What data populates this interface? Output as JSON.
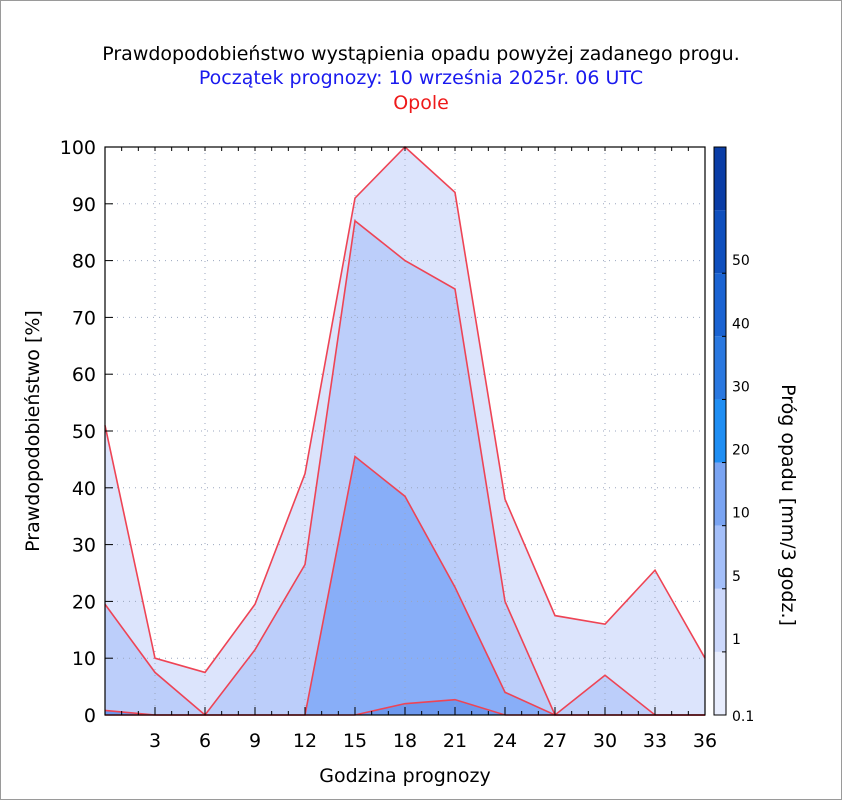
{
  "chart_data": {
    "type": "area",
    "title": "Prawdopodobieństwo wystąpienia opadu powyżej zadanego progu.",
    "subtitle": "Początek prognozy: 10 września 2025r. 06 UTC",
    "station": "Opole",
    "xlabel": "Godzina prognozy",
    "ylabel": "Prawdopodobieństwo [%]",
    "colorbar_label": "Próg opadu [mm/3 godz.]",
    "xlim": [
      0,
      36
    ],
    "ylim": [
      0,
      100
    ],
    "x_ticks": [
      3,
      6,
      9,
      12,
      15,
      18,
      21,
      24,
      27,
      30,
      33,
      36
    ],
    "y_ticks": [
      0,
      10,
      20,
      30,
      40,
      50,
      60,
      70,
      80,
      90,
      100
    ],
    "grid": true,
    "x": [
      0,
      3,
      6,
      9,
      12,
      15,
      18,
      21,
      24,
      27,
      30,
      33,
      36
    ],
    "series": [
      {
        "name": "0.1",
        "color": "#dce4fc",
        "values": [
          51,
          10,
          7.5,
          19.5,
          42.5,
          91,
          100,
          92,
          38,
          17.5,
          16,
          25.5,
          10
        ]
      },
      {
        "name": "1",
        "color": "#bccefa",
        "values": [
          19.5,
          7.5,
          0,
          11.5,
          26.5,
          87,
          80,
          75,
          20,
          0,
          7,
          0,
          0
        ]
      },
      {
        "name": "5",
        "color": "#88aef8",
        "values": [
          0,
          0,
          0,
          0,
          0,
          45.5,
          38.5,
          22.5,
          4,
          0,
          0,
          0,
          0
        ]
      },
      {
        "name": "10",
        "color": "#6c98ee",
        "values": [
          0.8,
          0,
          0,
          0,
          0,
          0,
          2,
          2.7,
          0,
          0,
          0,
          0,
          0
        ]
      }
    ],
    "line_color": "#ee4455",
    "colorbar": {
      "ticks": [
        "0.1",
        "1",
        "5",
        "10",
        "20",
        "30",
        "40",
        "50"
      ],
      "colors": [
        "#e8edfd",
        "#ccd8fb",
        "#a4bff9",
        "#7aa4f2",
        "#1f8ef3",
        "#2a78e0",
        "#1a63d2",
        "#0f4fbd",
        "#0a3da6"
      ]
    }
  }
}
